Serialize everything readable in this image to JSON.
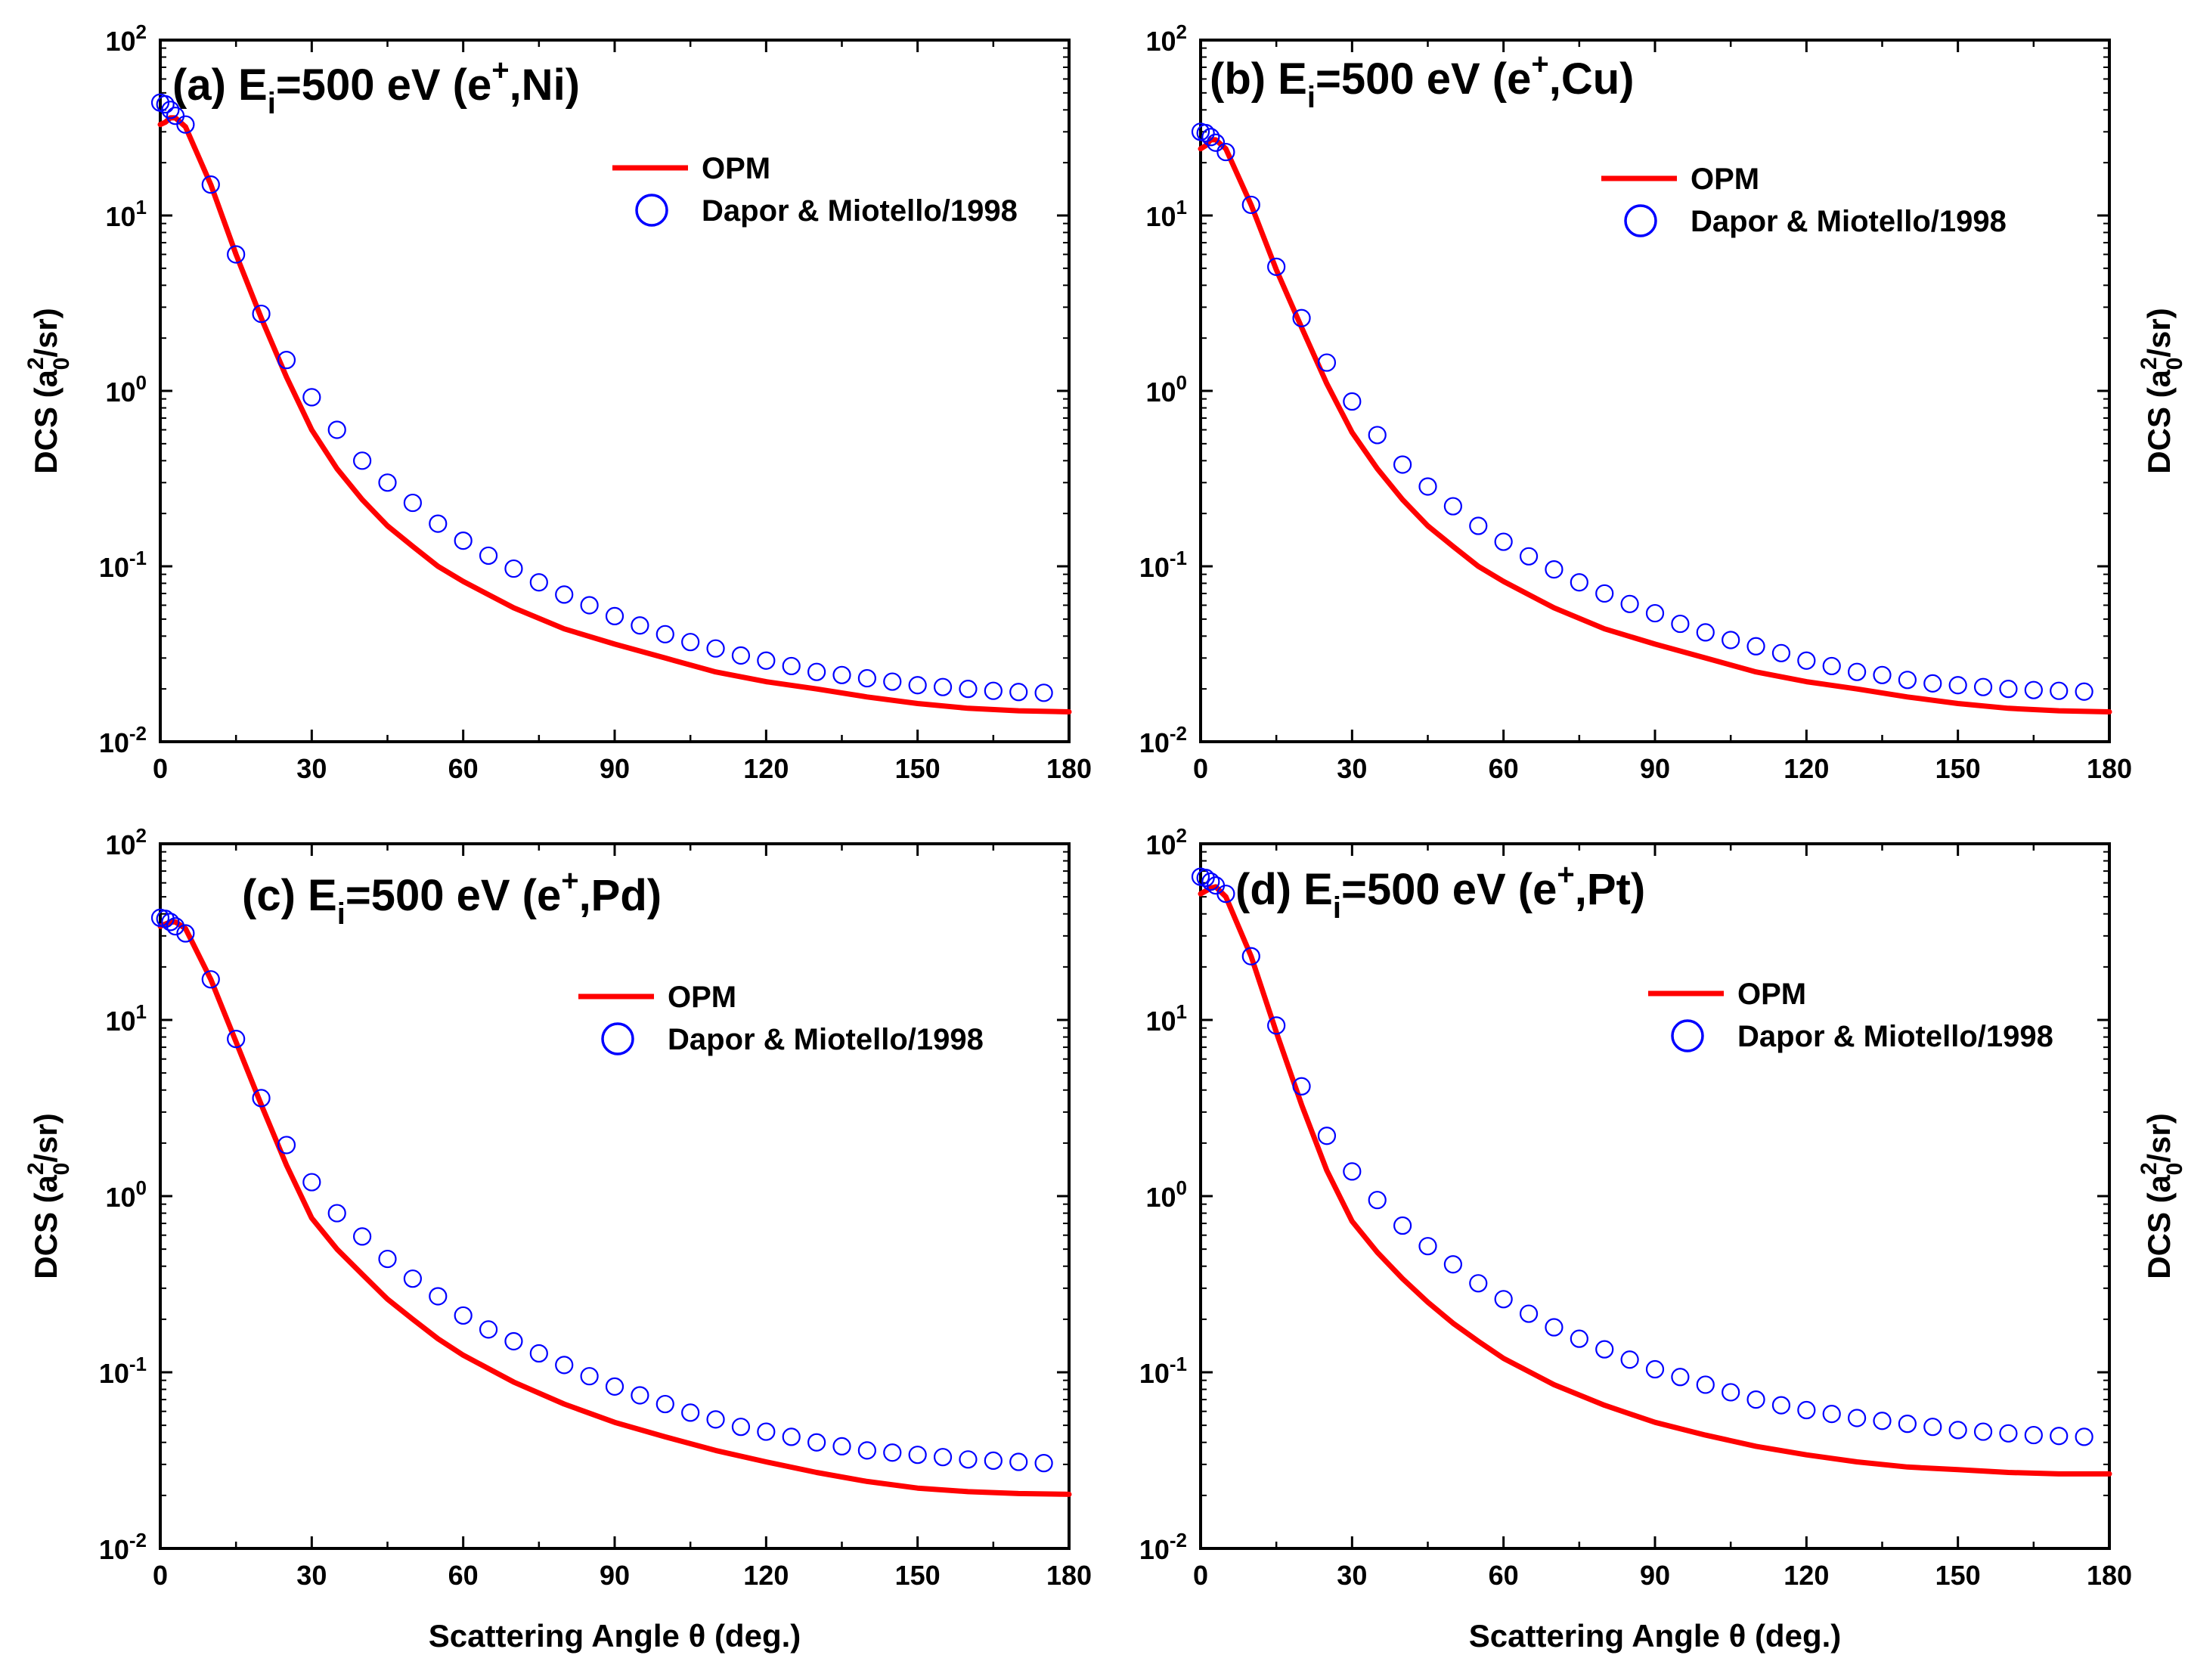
{
  "chart_data": [
    {
      "id": "a",
      "type": "line+scatter",
      "title": {
        "prefix": "(a) E",
        "sub": "i",
        "mid": "=500 eV (e",
        "sup": "+",
        "end": ",Ni)"
      },
      "xlabel": "",
      "ylabel": {
        "pre": "DCS (a",
        "sup": "2",
        "sub": "0",
        "post": "/sr)"
      },
      "ylabel_side": "left",
      "xlim": [
        0,
        180
      ],
      "ylim": [
        0.01,
        100
      ],
      "yscale": "log",
      "xticks": [
        "0",
        "30",
        "60",
        "90",
        "120",
        "150",
        "180"
      ],
      "yticks": [
        {
          "base": "10",
          "exp": "-2"
        },
        {
          "base": "10",
          "exp": "-1"
        },
        {
          "base": "10",
          "exp": "0"
        },
        {
          "base": "10",
          "exp": "1"
        },
        {
          "base": "10",
          "exp": "2"
        }
      ],
      "legend": {
        "position": "top-right",
        "line_label": "OPM",
        "marker_label": "Dapor & Miotello/1998"
      },
      "series": [
        {
          "name": "OPM",
          "style": "line",
          "color": "#ff0000",
          "x": [
            0,
            1,
            2,
            3,
            5,
            10,
            15,
            20,
            25,
            30,
            35,
            40,
            45,
            50,
            55,
            60,
            70,
            80,
            90,
            100,
            110,
            120,
            130,
            140,
            150,
            160,
            170,
            180
          ],
          "y": [
            33,
            34,
            36,
            36,
            32,
            15,
            6.0,
            2.6,
            1.2,
            0.6,
            0.36,
            0.24,
            0.17,
            0.13,
            0.1,
            0.082,
            0.058,
            0.044,
            0.036,
            0.03,
            0.025,
            0.022,
            0.02,
            0.018,
            0.0165,
            0.0155,
            0.015,
            0.0148
          ]
        },
        {
          "name": "Dapor & Miotello/1998",
          "style": "open-circle",
          "color": "#0000ff",
          "x": [
            0,
            1,
            2,
            3,
            5,
            10,
            15,
            20,
            25,
            30,
            35,
            40,
            45,
            50,
            55,
            60,
            65,
            70,
            75,
            80,
            85,
            90,
            95,
            100,
            105,
            110,
            115,
            120,
            125,
            130,
            135,
            140,
            145,
            150,
            155,
            160,
            165,
            170,
            175
          ],
          "y": [
            44,
            43,
            40,
            37,
            33,
            15,
            6.0,
            2.75,
            1.5,
            0.92,
            0.6,
            0.4,
            0.3,
            0.23,
            0.175,
            0.14,
            0.115,
            0.097,
            0.081,
            0.069,
            0.06,
            0.052,
            0.046,
            0.041,
            0.037,
            0.034,
            0.031,
            0.029,
            0.027,
            0.025,
            0.024,
            0.023,
            0.022,
            0.021,
            0.0205,
            0.02,
            0.0195,
            0.0192,
            0.019
          ]
        }
      ]
    },
    {
      "id": "b",
      "type": "line+scatter",
      "title": {
        "prefix": "(b) E",
        "sub": "i",
        "mid": "=500 eV (e",
        "sup": "+",
        "end": ",Cu)"
      },
      "xlabel": "",
      "ylabel": {
        "pre": "DCS (a",
        "sup": "2",
        "sub": "0",
        "post": "/sr)"
      },
      "ylabel_side": "right",
      "xlim": [
        0,
        180
      ],
      "ylim": [
        0.01,
        100
      ],
      "yscale": "log",
      "xticks": [
        "0",
        "30",
        "60",
        "90",
        "120",
        "150",
        "180"
      ],
      "yticks": [
        {
          "base": "10",
          "exp": "-2"
        },
        {
          "base": "10",
          "exp": "-1"
        },
        {
          "base": "10",
          "exp": "0"
        },
        {
          "base": "10",
          "exp": "1"
        },
        {
          "base": "10",
          "exp": "2"
        }
      ],
      "legend": {
        "position": "top-right",
        "line_label": "OPM",
        "marker_label": "Dapor & Miotello/1998"
      },
      "series": [
        {
          "name": "OPM",
          "style": "line",
          "color": "#ff0000",
          "x": [
            0,
            1,
            2,
            3,
            5,
            10,
            15,
            20,
            25,
            30,
            35,
            40,
            45,
            50,
            55,
            60,
            70,
            80,
            90,
            100,
            110,
            120,
            130,
            140,
            150,
            160,
            170,
            180
          ],
          "y": [
            24,
            25,
            27,
            27,
            24,
            11.5,
            4.9,
            2.3,
            1.1,
            0.58,
            0.36,
            0.24,
            0.17,
            0.13,
            0.1,
            0.082,
            0.058,
            0.044,
            0.036,
            0.03,
            0.025,
            0.022,
            0.02,
            0.018,
            0.0165,
            0.0155,
            0.015,
            0.0148
          ]
        },
        {
          "name": "Dapor & Miotello/1998",
          "style": "open-circle",
          "color": "#0000ff",
          "x": [
            0,
            1,
            2,
            3,
            5,
            10,
            15,
            20,
            25,
            30,
            35,
            40,
            45,
            50,
            55,
            60,
            65,
            70,
            75,
            80,
            85,
            90,
            95,
            100,
            105,
            110,
            115,
            120,
            125,
            130,
            135,
            140,
            145,
            150,
            155,
            160,
            165,
            170,
            175
          ],
          "y": [
            30,
            29.5,
            28,
            26,
            23,
            11.5,
            5.1,
            2.6,
            1.45,
            0.87,
            0.56,
            0.38,
            0.285,
            0.22,
            0.17,
            0.138,
            0.114,
            0.096,
            0.081,
            0.07,
            0.061,
            0.054,
            0.047,
            0.042,
            0.038,
            0.035,
            0.032,
            0.029,
            0.027,
            0.025,
            0.024,
            0.0225,
            0.0215,
            0.021,
            0.0205,
            0.02,
            0.0197,
            0.0195,
            0.0193
          ]
        }
      ]
    },
    {
      "id": "c",
      "type": "line+scatter",
      "title": {
        "prefix": "(c) E",
        "sub": "i",
        "mid": "=500 eV (e",
        "sup": "+",
        "end": ",Pd)"
      },
      "xlabel": "Scattering Angle θ (deg.)",
      "ylabel": {
        "pre": "DCS (a",
        "sup": "2",
        "sub": "0",
        "post": "/sr)"
      },
      "ylabel_side": "left",
      "xlim": [
        0,
        180
      ],
      "ylim": [
        0.01,
        100
      ],
      "yscale": "log",
      "xticks": [
        "0",
        "30",
        "60",
        "90",
        "120",
        "150",
        "180"
      ],
      "yticks": [
        {
          "base": "10",
          "exp": "-2"
        },
        {
          "base": "10",
          "exp": "-1"
        },
        {
          "base": "10",
          "exp": "0"
        },
        {
          "base": "10",
          "exp": "1"
        },
        {
          "base": "10",
          "exp": "2"
        }
      ],
      "legend": {
        "position": "top-right",
        "line_label": "OPM",
        "marker_label": "Dapor & Miotello/1998"
      },
      "series": [
        {
          "name": "OPM",
          "style": "line",
          "color": "#ff0000",
          "x": [
            0,
            1,
            2,
            3,
            5,
            10,
            15,
            20,
            25,
            30,
            35,
            40,
            45,
            50,
            55,
            60,
            70,
            80,
            90,
            100,
            110,
            120,
            130,
            140,
            150,
            160,
            170,
            180
          ],
          "y": [
            34,
            35,
            36,
            36,
            33,
            17,
            7.5,
            3.3,
            1.5,
            0.75,
            0.5,
            0.36,
            0.26,
            0.2,
            0.155,
            0.125,
            0.088,
            0.066,
            0.052,
            0.043,
            0.036,
            0.031,
            0.027,
            0.024,
            0.022,
            0.021,
            0.0205,
            0.0203
          ]
        },
        {
          "name": "Dapor & Miotello/1998",
          "style": "open-circle",
          "color": "#0000ff",
          "x": [
            0,
            1,
            2,
            3,
            5,
            10,
            15,
            20,
            25,
            30,
            35,
            40,
            45,
            50,
            55,
            60,
            65,
            70,
            75,
            80,
            85,
            90,
            95,
            100,
            105,
            110,
            115,
            120,
            125,
            130,
            135,
            140,
            145,
            150,
            155,
            160,
            165,
            170,
            175
          ],
          "y": [
            38,
            37.5,
            36,
            34,
            31,
            17,
            7.8,
            3.6,
            1.95,
            1.2,
            0.8,
            0.59,
            0.44,
            0.34,
            0.27,
            0.21,
            0.175,
            0.15,
            0.128,
            0.11,
            0.095,
            0.083,
            0.074,
            0.066,
            0.059,
            0.054,
            0.049,
            0.046,
            0.043,
            0.04,
            0.038,
            0.036,
            0.035,
            0.034,
            0.033,
            0.032,
            0.0315,
            0.031,
            0.0305
          ]
        }
      ]
    },
    {
      "id": "d",
      "type": "line+scatter",
      "title": {
        "prefix": "(d) E",
        "sub": "i",
        "mid": "=500 eV (e",
        "sup": "+",
        "end": ",Pt)"
      },
      "xlabel": "Scattering Angle θ (deg.)",
      "ylabel": {
        "pre": "DCS (a",
        "sup": "2",
        "sub": "0",
        "post": "/sr)"
      },
      "ylabel_side": "right",
      "xlim": [
        0,
        180
      ],
      "ylim": [
        0.01,
        100
      ],
      "yscale": "log",
      "xticks": [
        "0",
        "30",
        "60",
        "90",
        "120",
        "150",
        "180"
      ],
      "yticks": [
        {
          "base": "10",
          "exp": "-2"
        },
        {
          "base": "10",
          "exp": "-1"
        },
        {
          "base": "10",
          "exp": "0"
        },
        {
          "base": "10",
          "exp": "1"
        },
        {
          "base": "10",
          "exp": "2"
        }
      ],
      "legend": {
        "position": "top-right",
        "line_label": "OPM",
        "marker_label": "Dapor & Miotello/1998"
      },
      "series": [
        {
          "name": "OPM",
          "style": "line",
          "color": "#ff0000",
          "x": [
            0,
            1,
            2,
            3,
            5,
            10,
            15,
            20,
            25,
            30,
            35,
            40,
            45,
            50,
            55,
            60,
            70,
            80,
            90,
            100,
            110,
            120,
            130,
            140,
            150,
            160,
            170,
            180
          ],
          "y": [
            52,
            54,
            56,
            57,
            50,
            23,
            8.5,
            3.3,
            1.4,
            0.72,
            0.48,
            0.34,
            0.25,
            0.19,
            0.15,
            0.12,
            0.085,
            0.065,
            0.052,
            0.044,
            0.038,
            0.034,
            0.031,
            0.029,
            0.028,
            0.027,
            0.0265,
            0.0265
          ]
        },
        {
          "name": "Dapor & Miotello/1998",
          "style": "open-circle",
          "color": "#0000ff",
          "x": [
            0,
            1,
            2,
            3,
            5,
            10,
            15,
            20,
            25,
            30,
            35,
            40,
            45,
            50,
            55,
            60,
            65,
            70,
            75,
            80,
            85,
            90,
            95,
            100,
            105,
            110,
            115,
            120,
            125,
            130,
            135,
            140,
            145,
            150,
            155,
            160,
            165,
            170,
            175
          ],
          "y": [
            65,
            64,
            61,
            58,
            52,
            23,
            9.3,
            4.2,
            2.2,
            1.38,
            0.95,
            0.68,
            0.52,
            0.41,
            0.32,
            0.26,
            0.215,
            0.18,
            0.155,
            0.135,
            0.118,
            0.104,
            0.094,
            0.085,
            0.077,
            0.07,
            0.065,
            0.061,
            0.058,
            0.055,
            0.053,
            0.051,
            0.049,
            0.047,
            0.046,
            0.045,
            0.044,
            0.0435,
            0.043
          ]
        }
      ]
    }
  ]
}
